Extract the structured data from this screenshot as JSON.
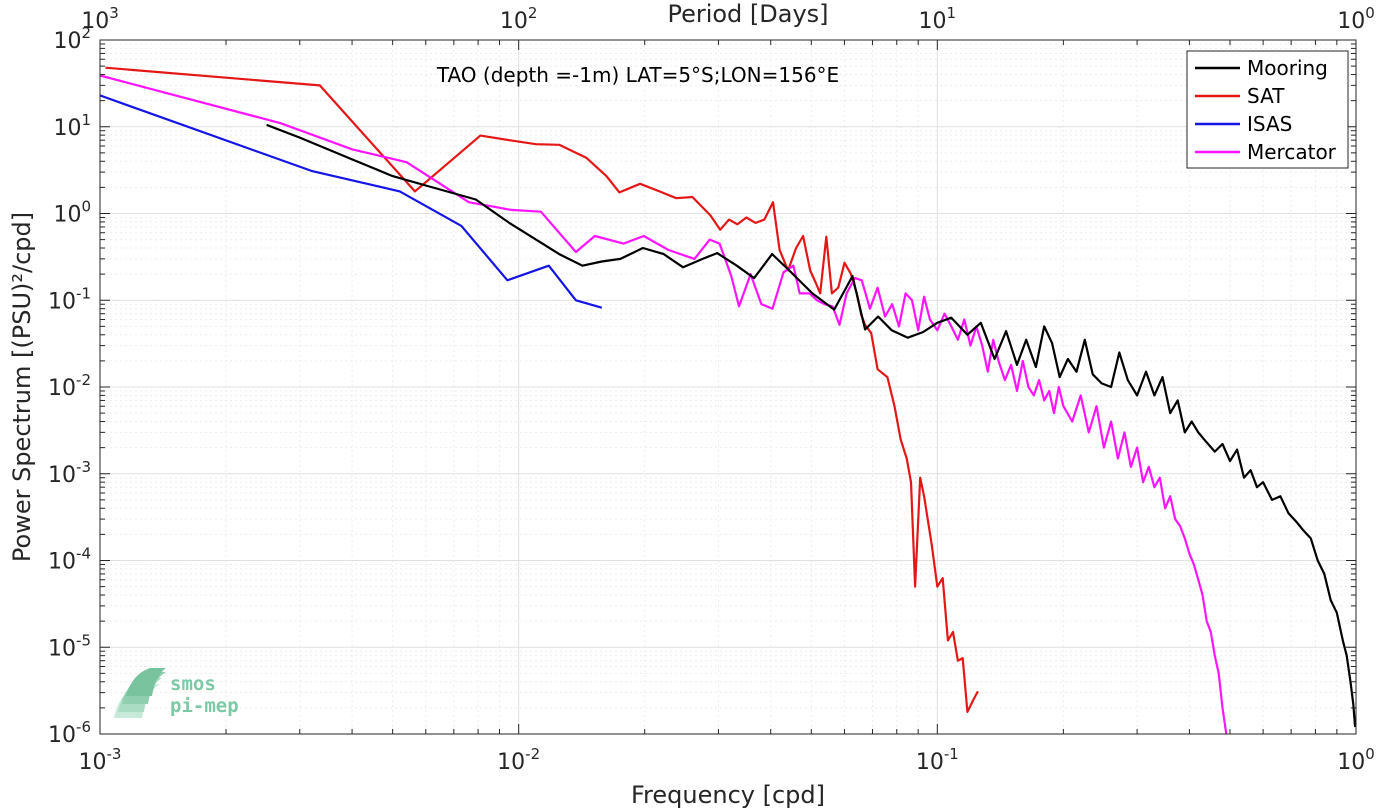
{
  "chart_data": {
    "type": "line",
    "title": "TAO (depth =-1m) LAT=5°S;LON=156°E",
    "xlabel": "Frequency [cpd]",
    "ylabel": "Power Spectrum [(PSU)²/cpd]",
    "top_xlabel": "Period [Days]",
    "xscale": "log",
    "yscale": "log",
    "xlim": [
      0.001,
      1
    ],
    "ylim": [
      1e-06,
      100
    ],
    "grid": true,
    "legend_position": "top-right",
    "x_ticks": [
      {
        "base": "10",
        "exp": "-3",
        "v": 0.001
      },
      {
        "base": "10",
        "exp": "-2",
        "v": 0.01
      },
      {
        "base": "10",
        "exp": "-1",
        "v": 0.1
      },
      {
        "base": "10",
        "exp": "0",
        "v": 1
      }
    ],
    "top_ticks": [
      {
        "base": "10",
        "exp": "3",
        "v": 0.001
      },
      {
        "base": "10",
        "exp": "2",
        "v": 0.01
      },
      {
        "base": "10",
        "exp": "1",
        "v": 0.1
      },
      {
        "base": "10",
        "exp": "0",
        "v": 1
      }
    ],
    "y_ticks": [
      {
        "base": "10",
        "exp": "-6",
        "v": 1e-06
      },
      {
        "base": "10",
        "exp": "-5",
        "v": 1e-05
      },
      {
        "base": "10",
        "exp": "-4",
        "v": 0.0001
      },
      {
        "base": "10",
        "exp": "-3",
        "v": 0.001
      },
      {
        "base": "10",
        "exp": "-2",
        "v": 0.01
      },
      {
        "base": "10",
        "exp": "-1",
        "v": 0.1
      },
      {
        "base": "10",
        "exp": "0",
        "v": 1
      },
      {
        "base": "10",
        "exp": "1",
        "v": 10
      },
      {
        "base": "10",
        "exp": "2",
        "v": 100
      }
    ],
    "series": [
      {
        "name": "Mooring",
        "color": "#000000",
        "points": [
          [
            0.0025,
            10.5
          ],
          [
            0.003,
            7.5
          ],
          [
            0.004,
            4.2
          ],
          [
            0.005,
            2.7
          ],
          [
            0.006,
            2.1
          ],
          [
            0.0079,
            1.45
          ],
          [
            0.0095,
            0.78
          ],
          [
            0.011,
            0.5
          ],
          [
            0.0125,
            0.34
          ],
          [
            0.0142,
            0.25
          ],
          [
            0.0158,
            0.28
          ],
          [
            0.0175,
            0.3
          ],
          [
            0.0198,
            0.4
          ],
          [
            0.0222,
            0.34
          ],
          [
            0.0247,
            0.24
          ],
          [
            0.0275,
            0.3
          ],
          [
            0.0298,
            0.35
          ],
          [
            0.0332,
            0.25
          ],
          [
            0.0365,
            0.18
          ],
          [
            0.0403,
            0.34
          ],
          [
            0.0443,
            0.22
          ],
          [
            0.0503,
            0.12
          ],
          [
            0.0567,
            0.078
          ],
          [
            0.0627,
            0.19
          ],
          [
            0.0672,
            0.046
          ],
          [
            0.0722,
            0.065
          ],
          [
            0.0778,
            0.045
          ],
          [
            0.085,
            0.037
          ],
          [
            0.0925,
            0.043
          ],
          [
            0.1,
            0.055
          ],
          [
            0.108,
            0.063
          ],
          [
            0.118,
            0.04
          ],
          [
            0.127,
            0.055
          ],
          [
            0.137,
            0.021
          ],
          [
            0.146,
            0.044
          ],
          [
            0.155,
            0.018
          ],
          [
            0.163,
            0.035
          ],
          [
            0.172,
            0.017
          ],
          [
            0.18,
            0.05
          ],
          [
            0.188,
            0.032
          ],
          [
            0.196,
            0.013
          ],
          [
            0.205,
            0.021
          ],
          [
            0.215,
            0.015
          ],
          [
            0.225,
            0.035
          ],
          [
            0.235,
            0.014
          ],
          [
            0.247,
            0.011
          ],
          [
            0.26,
            0.01
          ],
          [
            0.272,
            0.025
          ],
          [
            0.285,
            0.012
          ],
          [
            0.3,
            0.008
          ],
          [
            0.315,
            0.015
          ],
          [
            0.33,
            0.008
          ],
          [
            0.345,
            0.013
          ],
          [
            0.36,
            0.005
          ],
          [
            0.375,
            0.007
          ],
          [
            0.39,
            0.003
          ],
          [
            0.405,
            0.004
          ],
          [
            0.42,
            0.003
          ],
          [
            0.44,
            0.0023
          ],
          [
            0.46,
            0.0018
          ],
          [
            0.48,
            0.0022
          ],
          [
            0.5,
            0.0014
          ],
          [
            0.52,
            0.0019
          ],
          [
            0.54,
            0.0009
          ],
          [
            0.56,
            0.0011
          ],
          [
            0.58,
            0.0007
          ],
          [
            0.6,
            0.0008
          ],
          [
            0.63,
            0.0005
          ],
          [
            0.66,
            0.00055
          ],
          [
            0.69,
            0.00035
          ],
          [
            0.72,
            0.00028
          ],
          [
            0.75,
            0.00022
          ],
          [
            0.78,
            0.00018
          ],
          [
            0.81,
            0.0001
          ],
          [
            0.84,
            7e-05
          ],
          [
            0.87,
            3.5e-05
          ],
          [
            0.9,
            2.5e-05
          ],
          [
            0.93,
            1.2e-05
          ],
          [
            0.95,
            8e-06
          ],
          [
            0.97,
            4e-06
          ],
          [
            0.985,
            2.2e-06
          ],
          [
            0.995,
            1.2e-06
          ]
        ]
      },
      {
        "name": "SAT",
        "color": "#e51616",
        "points": [
          [
            0.00103,
            48
          ],
          [
            0.00335,
            30
          ],
          [
            0.00565,
            1.8
          ],
          [
            0.0081,
            7.9
          ],
          [
            0.0095,
            7.0
          ],
          [
            0.011,
            6.3
          ],
          [
            0.0125,
            6.2
          ],
          [
            0.0145,
            4.4
          ],
          [
            0.0162,
            2.7
          ],
          [
            0.0174,
            1.75
          ],
          [
            0.0195,
            2.2
          ],
          [
            0.0217,
            1.8
          ],
          [
            0.0238,
            1.5
          ],
          [
            0.026,
            1.55
          ],
          [
            0.0287,
            0.95
          ],
          [
            0.0303,
            0.65
          ],
          [
            0.0318,
            0.85
          ],
          [
            0.0333,
            0.75
          ],
          [
            0.035,
            0.9
          ],
          [
            0.0368,
            0.78
          ],
          [
            0.0386,
            0.85
          ],
          [
            0.0405,
            1.35
          ],
          [
            0.042,
            0.38
          ],
          [
            0.044,
            0.22
          ],
          [
            0.046,
            0.4
          ],
          [
            0.0478,
            0.55
          ],
          [
            0.0497,
            0.22
          ],
          [
            0.0512,
            0.16
          ],
          [
            0.0525,
            0.12
          ],
          [
            0.0543,
            0.54
          ],
          [
            0.056,
            0.12
          ],
          [
            0.058,
            0.14
          ],
          [
            0.06,
            0.27
          ],
          [
            0.0622,
            0.2
          ],
          [
            0.0642,
            0.12
          ],
          [
            0.0658,
            0.068
          ],
          [
            0.0672,
            0.052
          ],
          [
            0.0695,
            0.042
          ],
          [
            0.072,
            0.016
          ],
          [
            0.076,
            0.013
          ],
          [
            0.079,
            0.006
          ],
          [
            0.0817,
            0.0025
          ],
          [
            0.0845,
            0.0015
          ],
          [
            0.0865,
            0.0008
          ],
          [
            0.0885,
            5e-05
          ],
          [
            0.091,
            0.0009
          ],
          [
            0.093,
            0.00055
          ],
          [
            0.097,
            0.00015
          ],
          [
            0.1,
            5e-05
          ],
          [
            0.103,
            6.25e-05
          ],
          [
            0.106,
            1.2e-05
          ],
          [
            0.109,
            1.5e-05
          ],
          [
            0.112,
            7e-06
          ],
          [
            0.115,
            7.5e-06
          ],
          [
            0.118,
            1.8e-06
          ],
          [
            0.122,
            2.5e-06
          ],
          [
            0.125,
            3.1e-06
          ]
        ]
      },
      {
        "name": "ISAS",
        "color": "#1414e6",
        "points": [
          [
            0.001,
            23
          ],
          [
            0.0032,
            3.1
          ],
          [
            0.0052,
            1.8
          ],
          [
            0.0073,
            0.72
          ],
          [
            0.0094,
            0.17
          ],
          [
            0.0118,
            0.25
          ],
          [
            0.0137,
            0.1
          ],
          [
            0.0158,
            0.082
          ]
        ]
      },
      {
        "name": "Mercator",
        "color": "#ff14ff",
        "points": [
          [
            0.001,
            39
          ],
          [
            0.0027,
            11
          ],
          [
            0.004,
            5.5
          ],
          [
            0.0054,
            3.9
          ],
          [
            0.0076,
            1.35
          ],
          [
            0.0096,
            1.1
          ],
          [
            0.0113,
            1.05
          ],
          [
            0.0137,
            0.36
          ],
          [
            0.0152,
            0.55
          ],
          [
            0.0178,
            0.45
          ],
          [
            0.0199,
            0.55
          ],
          [
            0.0228,
            0.38
          ],
          [
            0.0263,
            0.3
          ],
          [
            0.0286,
            0.5
          ],
          [
            0.0302,
            0.45
          ],
          [
            0.0322,
            0.19
          ],
          [
            0.0336,
            0.085
          ],
          [
            0.0358,
            0.2
          ],
          [
            0.038,
            0.09
          ],
          [
            0.0404,
            0.08
          ],
          [
            0.0429,
            0.21
          ],
          [
            0.0453,
            0.25
          ],
          [
            0.0469,
            0.12
          ],
          [
            0.0496,
            0.12
          ],
          [
            0.0516,
            0.1
          ],
          [
            0.0538,
            0.09
          ],
          [
            0.0562,
            0.085
          ],
          [
            0.0584,
            0.052
          ],
          [
            0.0607,
            0.12
          ],
          [
            0.0635,
            0.18
          ],
          [
            0.066,
            0.17
          ],
          [
            0.069,
            0.08
          ],
          [
            0.072,
            0.14
          ],
          [
            0.075,
            0.065
          ],
          [
            0.078,
            0.09
          ],
          [
            0.081,
            0.05
          ],
          [
            0.084,
            0.12
          ],
          [
            0.087,
            0.1
          ],
          [
            0.09,
            0.045
          ],
          [
            0.093,
            0.11
          ],
          [
            0.096,
            0.06
          ],
          [
            0.1,
            0.045
          ],
          [
            0.104,
            0.07
          ],
          [
            0.108,
            0.05
          ],
          [
            0.112,
            0.035
          ],
          [
            0.116,
            0.06
          ],
          [
            0.12,
            0.03
          ],
          [
            0.124,
            0.05
          ],
          [
            0.128,
            0.03
          ],
          [
            0.132,
            0.015
          ],
          [
            0.136,
            0.035
          ],
          [
            0.14,
            0.02
          ],
          [
            0.145,
            0.012
          ],
          [
            0.15,
            0.018
          ],
          [
            0.155,
            0.009
          ],
          [
            0.16,
            0.02
          ],
          [
            0.165,
            0.01
          ],
          [
            0.17,
            0.008
          ],
          [
            0.175,
            0.012
          ],
          [
            0.18,
            0.007
          ],
          [
            0.185,
            0.009
          ],
          [
            0.19,
            0.005
          ],
          [
            0.195,
            0.01
          ],
          [
            0.2,
            0.006
          ],
          [
            0.21,
            0.004
          ],
          [
            0.22,
            0.008
          ],
          [
            0.23,
            0.003
          ],
          [
            0.24,
            0.006
          ],
          [
            0.25,
            0.002
          ],
          [
            0.26,
            0.004
          ],
          [
            0.27,
            0.0015
          ],
          [
            0.28,
            0.003
          ],
          [
            0.29,
            0.0012
          ],
          [
            0.3,
            0.002
          ],
          [
            0.31,
            0.0008
          ],
          [
            0.32,
            0.0012
          ],
          [
            0.33,
            0.0007
          ],
          [
            0.34,
            0.0009
          ],
          [
            0.35,
            0.0004
          ],
          [
            0.36,
            0.00055
          ],
          [
            0.37,
            0.0003
          ],
          [
            0.38,
            0.00025
          ],
          [
            0.39,
            0.00018
          ],
          [
            0.4,
            0.00012
          ],
          [
            0.41,
            9e-05
          ],
          [
            0.42,
            6e-05
          ],
          [
            0.43,
            4e-05
          ],
          [
            0.44,
            2e-05
          ],
          [
            0.45,
            1.5e-05
          ],
          [
            0.46,
            8e-06
          ],
          [
            0.47,
            5e-06
          ],
          [
            0.48,
            2e-06
          ],
          [
            0.49,
            1e-06
          ]
        ]
      }
    ]
  },
  "logo": {
    "line1": "smos",
    "line2": "pi-mep"
  }
}
